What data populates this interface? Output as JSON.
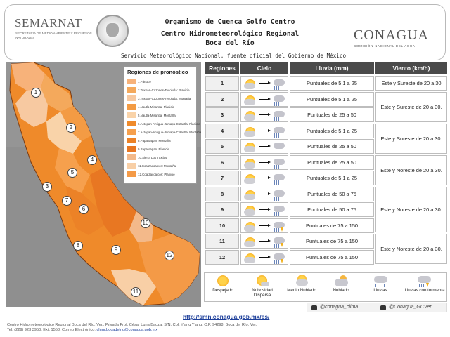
{
  "header": {
    "semarnat": "SEMARNAT",
    "semarnat_sub": "SECRETARÍA DE MEDIO AMBIENTE Y RECURSOS NATURALES",
    "line1": "Organismo de Cuenca Golfo Centro",
    "line2": "Centro Hidrometeorológico Regional",
    "line3": "Boca del Río",
    "smn": "Servicio Meteorológico Nacional, fuente oficial del Gobierno de México",
    "conagua": "CONAGUA",
    "conagua_sub": "COMISIÓN NACIONAL DEL AGUA"
  },
  "map": {
    "legend_title": "Regiones de pronóstico",
    "legend": [
      {
        "label": "1.Pánuco",
        "color": "#f7b27a"
      },
      {
        "label": "2.Tuxpan-Cazones-Tecolutla: Planicie",
        "color": "#f4a95c"
      },
      {
        "label": "3.Tuxpan-Cazones-Tecolutla: Montaña",
        "color": "#f7c9a1"
      },
      {
        "label": "4.Nautla-Misantla: Planicie",
        "color": "#f39b44"
      },
      {
        "label": "5.Nautla-Misantla: Montaña",
        "color": "#f9d3a9"
      },
      {
        "label": "6.Actopan-Antigua-Jamapa-Cotaxtla: Planicie",
        "color": "#ef8a2a"
      },
      {
        "label": "7.Actopan-Antigua-Jamapa-Cotaxtla: Montaña",
        "color": "#f6a04d"
      },
      {
        "label": "8.Papaloapan: Montaña",
        "color": "#ec8227"
      },
      {
        "label": "9.Papaloapan: Planicie",
        "color": "#e87722"
      },
      {
        "label": "10.Sierra Los Tuxtlas",
        "color": "#f3b98a"
      },
      {
        "label": "11.Coatzacoalcos: Montaña",
        "color": "#f8cfa6"
      },
      {
        "label": "12.Coatzacoalcos: Planicie",
        "color": "#f49a47"
      }
    ],
    "region_numbers": [
      "1",
      "2",
      "3",
      "4",
      "5",
      "6",
      "7",
      "8",
      "9",
      "10",
      "11",
      "12"
    ]
  },
  "table": {
    "headers": [
      "Regiones",
      "Cielo",
      "Lluvia (mm)",
      "Viento (km/h)"
    ],
    "rows": [
      {
        "region": "1",
        "rain": "Puntuales de 5.1 a 25"
      },
      {
        "region": "2",
        "rain": "Puntuales de 5.1 a 25"
      },
      {
        "region": "3",
        "rain": "Puntuales de 25 a 50"
      },
      {
        "region": "4",
        "rain": "Puntuales de 5.1 a 25"
      },
      {
        "region": "5",
        "rain": "Puntuales de 25 a 50"
      },
      {
        "region": "6",
        "rain": "Puntuales de 25 a 50"
      },
      {
        "region": "7",
        "rain": "Puntuales de 5.1 a 25"
      },
      {
        "region": "8",
        "rain": "Puntuales de 50 a 75"
      },
      {
        "region": "9",
        "rain": "Puntuales de 50 a 75"
      },
      {
        "region": "10",
        "rain": "Puntuales de 75 a 150"
      },
      {
        "region": "11",
        "rain": "Puntuales de 75 a 150"
      },
      {
        "region": "12",
        "rain": "Puntuales de 75 a 150"
      }
    ],
    "wind": [
      "Este y Sureste de 20 a 30",
      "Este y Sureste de 20 a 30.",
      "Este y Sureste de 20 a 30.",
      "Este y Noreste de 20 a 30.",
      "Este y Noreste de 20 a 30.",
      "Este y Noreste de 20 a 30."
    ]
  },
  "sky_legend": [
    "Despejado",
    "Nubosidad Dispersa",
    "Medio Nublado",
    "Nublado",
    "Lluvias",
    "Lluvias con tormenta"
  ],
  "social": {
    "twitter1": "@conagua_clima",
    "twitter2": "@Conagua_GCVer"
  },
  "url": "http://smn.conagua.gob.mx/es/",
  "footer": {
    "line1": "Centro Hidrometeorológico Regional Boca del Río, Ver., Privada Prof. César Luna Bauza, S/N, Col. Ylang Ylang, C.P. 94298, Boca del Río, Ver.",
    "line2_prefix": "Tel: (229) 923 3950, Ext. 1558, Correo Electrónico:",
    "email": "chmr.bocadelrio@conagua.gob.mx"
  }
}
